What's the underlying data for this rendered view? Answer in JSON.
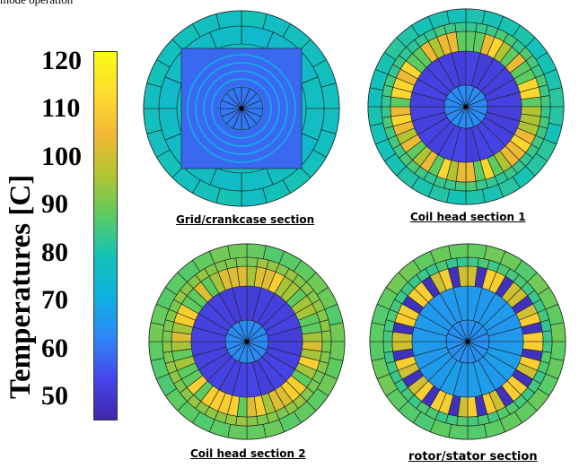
{
  "header_fragment": "mode operation",
  "colorbar": {
    "label": "Temperatures [C]",
    "ticks": [
      "120",
      "110",
      "100",
      "90",
      "80",
      "70",
      "60",
      "50"
    ],
    "range": [
      45,
      122
    ],
    "colors": [
      "#3e26a8",
      "#4746eb",
      "#2e87f7",
      "#0fb0e0",
      "#14c2b8",
      "#5ccb62",
      "#b3c431",
      "#f3b936",
      "#fcdc2e",
      "#f9fb15"
    ]
  },
  "sections": [
    {
      "caption": "Grid/crankcase section",
      "outer_temp": 78,
      "mid_temp": 76,
      "inner_temp": 58,
      "center_temp": 60
    },
    {
      "caption": "Coil head section 1",
      "outer_temp": 80,
      "mid_temp": 84,
      "winding_temps": [
        112,
        104,
        96,
        88
      ],
      "inner_temp": 52,
      "center_temp": 63
    },
    {
      "caption": "Coil head section 2",
      "outer_temp": 88,
      "mid_temp": 92,
      "winding_temps": [
        110,
        102,
        95,
        88
      ],
      "inner_temp": 52,
      "center_temp": 63
    },
    {
      "caption": "rotor/stator section",
      "outer_temp": 88,
      "mid_temp": 85,
      "winding_temps": [
        110,
        100,
        48
      ],
      "inner_temp": 66,
      "center_temp": 64
    }
  ]
}
